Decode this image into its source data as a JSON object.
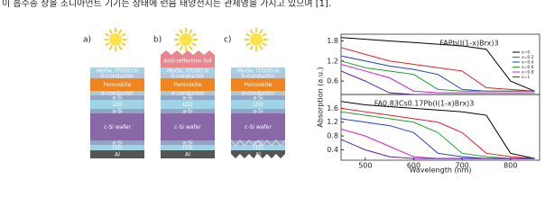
{
  "text": "이 흡수층 상을 조디아먼트 기기는 상태에 런음 태양전지는 관제영을 가지고 있으며 [1].",
  "figure": {
    "stacks": [
      {
        "label": "a)",
        "layers": [
          "MoOx, ITO/IO:H",
          "h-conductor",
          "Perovskite",
          "e-conductor",
          "a-Si",
          "IZO",
          "a-Si",
          "c-Si wafer",
          "a-Si",
          "ITO",
          "Al"
        ]
      },
      {
        "label": "b)",
        "foil": "Anti-reflection foil",
        "layers": [
          "MoOx, ITO/IO:H",
          "h-conductor",
          "Perovskite",
          "e-conductor",
          "a-Si",
          "IZO",
          "a-Si",
          "c-Si wafer",
          "a-Si",
          "ITO",
          "Al"
        ]
      },
      {
        "label": "c)",
        "layers": [
          "MoOx, ITO/IO:H",
          "h-conductor",
          "Perovskite",
          "e-conductor",
          "a-Si",
          "IZO",
          "a-Si",
          "c-Si wafer",
          "a-Si",
          "ITO",
          "Al"
        ]
      }
    ],
    "layer_colors": [
      "#9fd3e6",
      "#b3c6d6",
      "#f0841e",
      "#b3c6d6",
      "#93a4c4",
      "#9fd3e6",
      "#93a4c4",
      "#8a67a6",
      "#93a4c4",
      "#9fd3e6",
      "#555555"
    ]
  },
  "chart_data": [
    {
      "type": "line",
      "title": "FAPb(I(1-x)Brx)3",
      "ylabel": "Absorption (a.u.)",
      "x": [
        450,
        500,
        550,
        600,
        650,
        700,
        750,
        800,
        850
      ],
      "xlim": [
        450,
        860
      ],
      "ylim": [
        0.2,
        2.0
      ],
      "yticks": [
        0.6,
        1.2,
        1.8
      ],
      "series": [
        {
          "name": "x=0",
          "color": "#000000",
          "values": [
            1.9,
            1.85,
            1.8,
            1.75,
            1.7,
            1.65,
            1.55,
            0.6,
            0.3
          ]
        },
        {
          "name": "x=0.2",
          "color": "#e0202a",
          "values": [
            1.6,
            1.4,
            1.2,
            1.1,
            1.0,
            0.9,
            0.4,
            0.35,
            0.3
          ]
        },
        {
          "name": "x=0.4",
          "color": "#2040d0",
          "values": [
            1.35,
            1.2,
            1.05,
            0.95,
            0.8,
            0.35,
            0.3,
            0.3,
            0.3
          ]
        },
        {
          "name": "x=0.6",
          "color": "#20a030",
          "values": [
            1.2,
            1.0,
            0.9,
            0.8,
            0.35,
            0.3,
            0.3,
            0.3,
            0.3
          ]
        },
        {
          "name": "x=0.8",
          "color": "#d020c0",
          "values": [
            1.1,
            0.9,
            0.7,
            0.3,
            0.25,
            0.25,
            0.25,
            0.25,
            0.25
          ]
        },
        {
          "name": "x=1",
          "color": "#6020a0",
          "values": [
            0.9,
            0.6,
            0.25,
            0.2,
            0.2,
            0.2,
            0.2,
            0.2,
            0.2
          ]
        }
      ]
    },
    {
      "type": "line",
      "title": "FA0.83Cs0.17Pb(I(1-x)Brx)3",
      "xlabel": "Wavelength (nm)",
      "x": [
        450,
        500,
        550,
        600,
        650,
        700,
        750,
        800,
        850
      ],
      "xlim": [
        450,
        860
      ],
      "xticks": [
        500,
        600,
        700,
        800
      ],
      "ylim": [
        0.1,
        2.0
      ],
      "yticks": [
        0.4,
        0.8,
        1.2,
        1.6
      ],
      "series": [
        {
          "color": "#000000",
          "values": [
            1.8,
            1.7,
            1.65,
            1.6,
            1.55,
            1.5,
            1.4,
            0.3,
            0.15
          ]
        },
        {
          "color": "#e0202a",
          "values": [
            1.6,
            1.5,
            1.4,
            1.3,
            1.2,
            0.9,
            0.3,
            0.2,
            0.15
          ]
        },
        {
          "color": "#20a030",
          "values": [
            1.5,
            1.4,
            1.3,
            1.2,
            0.9,
            0.3,
            0.2,
            0.15,
            0.15
          ]
        },
        {
          "color": "#2040d0",
          "values": [
            1.3,
            1.2,
            1.1,
            0.9,
            0.3,
            0.2,
            0.15,
            0.15,
            0.15
          ]
        },
        {
          "color": "#d020c0",
          "values": [
            1.0,
            0.8,
            0.5,
            0.2,
            0.15,
            0.15,
            0.15,
            0.15,
            0.15
          ]
        },
        {
          "color": "#6020a0",
          "values": [
            0.7,
            0.4,
            0.2,
            0.15,
            0.15,
            0.15,
            0.15,
            0.15,
            0.15
          ]
        }
      ]
    }
  ]
}
